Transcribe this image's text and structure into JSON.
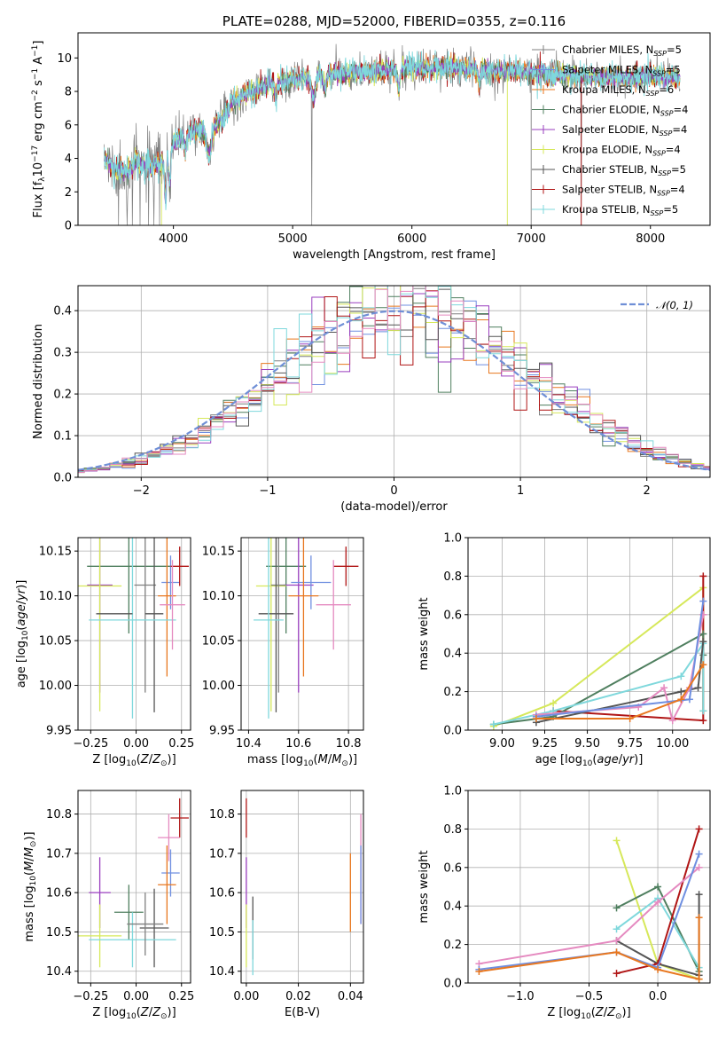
{
  "title": "PLATE=0288, MJD=52000, FIBERID=0355, z=0.116",
  "colors": {
    "chabrier_miles": "#7f7f7f",
    "salpeter_miles": "#6f8fe0",
    "kroupa_miles": "#e8771f",
    "chabrier_elodie": "#4f7f5f",
    "salpeter_elodie": "#9a3fbf",
    "kroupa_elodie": "#d6e85a",
    "chabrier_stelib": "#555555",
    "salpeter_stelib": "#b01515",
    "kroupa_stelib": "#7fd8dc",
    "pink": "#e58ac0",
    "gauss": "#6f8fd6"
  },
  "chart_data": [
    {
      "type": "line",
      "id": "spectrum",
      "title": "PLATE=0288, MJD=52000, FIBERID=0355, z=0.116",
      "xlabel": "wavelength [Angstrom, rest frame]",
      "ylabel": "Flux [fλ10⁻¹⁷ erg cm⁻² s⁻¹ A⁻¹]",
      "xlim": [
        3200,
        8500
      ],
      "ylim": [
        0,
        11.5
      ],
      "xticks": [
        "4000",
        "5000",
        "6000",
        "7000",
        "8000"
      ],
      "yticks": [
        "0",
        "2",
        "4",
        "6",
        "8",
        "10"
      ],
      "legend_position": "top-right",
      "legend": [
        {
          "label": "Chabrier MILES, N",
          "sub": "SSP",
          "suffix": "=5",
          "color_key": "chabrier_miles"
        },
        {
          "label": "Salpeter MILES, N",
          "sub": "SSP",
          "suffix": "=5",
          "color_key": "salpeter_miles"
        },
        {
          "label": "Kroupa MILES, N",
          "sub": "SSP",
          "suffix": "=6",
          "color_key": "kroupa_miles"
        },
        {
          "label": "Chabrier ELODIE, N",
          "sub": "SSP",
          "suffix": "=4",
          "color_key": "chabrier_elodie"
        },
        {
          "label": "Salpeter ELODIE, N",
          "sub": "SSP",
          "suffix": "=4",
          "color_key": "salpeter_elodie"
        },
        {
          "label": "Kroupa ELODIE, N",
          "sub": "SSP",
          "suffix": "=4",
          "color_key": "kroupa_elodie"
        },
        {
          "label": "Chabrier STELIB, N",
          "sub": "SSP",
          "suffix": "=5",
          "color_key": "chabrier_stelib"
        },
        {
          "label": "Salpeter STELIB, N",
          "sub": "SSP",
          "suffix": "=4",
          "color_key": "salpeter_stelib"
        },
        {
          "label": "Kroupa STELIB, N",
          "sub": "SSP",
          "suffix": "=5",
          "color_key": "kroupa_stelib"
        }
      ],
      "continuum_nodes": {
        "x": [
          3420,
          3500,
          3600,
          3700,
          3800,
          3900,
          4000,
          4100,
          4200,
          4300,
          4400,
          4500,
          4600,
          4800,
          5000,
          5200,
          5500,
          5800,
          6000,
          6300,
          6600,
          6800,
          7000,
          7200,
          7500,
          7800,
          8000,
          8250
        ],
        "y": [
          4.0,
          3.3,
          3.2,
          3.8,
          3.5,
          3.7,
          4.9,
          5.5,
          5.8,
          5.5,
          6.3,
          7.4,
          7.8,
          8.4,
          8.7,
          8.9,
          9.1,
          9.3,
          9.4,
          9.4,
          9.3,
          9.2,
          9.1,
          9.0,
          8.9,
          8.8,
          8.9,
          8.8
        ]
      }
    },
    {
      "type": "line",
      "id": "residuals",
      "xlabel": "(data-model)/error",
      "ylabel": "Normed distribution",
      "xlim": [
        -2.5,
        2.5
      ],
      "ylim": [
        0,
        0.46
      ],
      "xticks": [
        "−2",
        "−1",
        "0",
        "1",
        "2"
      ],
      "yticks": [
        "0.0",
        "0.1",
        "0.2",
        "0.3",
        "0.4"
      ],
      "legend": "𝒩(0, 1)",
      "legend_position": "top-right",
      "bin_width": 0.1
    },
    {
      "type": "scatter",
      "id": "age_vs_Z",
      "xlabel": "Z [log₁₀(Z/Z⊙)]",
      "ylabel": "age  [log₁₀(age/yr)]",
      "xlim": [
        -0.32,
        0.3
      ],
      "ylim": [
        9.95,
        10.165
      ],
      "xticks": [
        "−0.25",
        "0.00",
        "0.25"
      ],
      "yticks": [
        "9.95",
        "10.00",
        "10.05",
        "10.10",
        "10.15"
      ],
      "points": [
        {
          "series": "chabrier_elodie",
          "x": -0.04,
          "y": 10.133,
          "xerr": 0.23,
          "yerr": 0.075
        },
        {
          "series": "salpeter_elodie",
          "x": -0.2,
          "y": 10.112,
          "xerr": 0.07,
          "yerr": 0.12
        },
        {
          "series": "kroupa_elodie",
          "x": -0.2,
          "y": 10.111,
          "xerr": 0.12,
          "yerr": 0.14
        },
        {
          "series": "chabrier_miles",
          "x": 0.05,
          "y": 10.112,
          "xerr": 0.06,
          "yerr": 0.12
        },
        {
          "series": "salpeter_miles",
          "x": 0.19,
          "y": 10.115,
          "xerr": 0.05,
          "yerr": 0.03
        },
        {
          "series": "kroupa_miles",
          "x": 0.17,
          "y": 10.1,
          "xerr": 0.05,
          "yerr": 0.09
        },
        {
          "series": "chabrier_stelib",
          "x": 0.1,
          "y": 10.08,
          "xerr": 0.05,
          "yerr": 0.11
        },
        {
          "series": "salpeter_stelib",
          "x": 0.24,
          "y": 10.133,
          "xerr": 0.05,
          "yerr": 0.022
        },
        {
          "series": "kroupa_stelib",
          "x": -0.02,
          "y": 10.073,
          "xerr": 0.24,
          "yerr": 0.11
        },
        {
          "series": "pink",
          "x": 0.2,
          "y": 10.09,
          "xerr": 0.07,
          "yerr": 0.05
        },
        {
          "series": "chabrier_stelib",
          "x": -0.12,
          "y": 10.08,
          "xerr": 0.1,
          "yerr": 0.0
        }
      ]
    },
    {
      "type": "scatter",
      "id": "age_vs_mass",
      "xlabel": "mass [log₁₀(M/M⊙)]",
      "xlim": [
        10.37,
        10.86
      ],
      "ylim": [
        9.95,
        10.165
      ],
      "xticks": [
        "10.4",
        "10.6",
        "10.8"
      ],
      "yticks": [
        "9.95",
        "10.00",
        "10.05",
        "10.10",
        "10.15"
      ],
      "points": [
        {
          "series": "chabrier_elodie",
          "x": 10.55,
          "y": 10.133,
          "xerr": 0.08,
          "yerr": 0.075
        },
        {
          "series": "salpeter_elodie",
          "x": 10.6,
          "y": 10.112,
          "xerr": 0.06,
          "yerr": 0.12
        },
        {
          "series": "kroupa_elodie",
          "x": 10.49,
          "y": 10.111,
          "xerr": 0.06,
          "yerr": 0.14
        },
        {
          "series": "chabrier_miles",
          "x": 10.52,
          "y": 10.112,
          "xerr": 0.03,
          "yerr": 0.12
        },
        {
          "series": "salpeter_miles",
          "x": 10.65,
          "y": 10.115,
          "xerr": 0.08,
          "yerr": 0.03
        },
        {
          "series": "kroupa_miles",
          "x": 10.62,
          "y": 10.1,
          "xerr": 0.06,
          "yerr": 0.09
        },
        {
          "series": "chabrier_stelib",
          "x": 10.51,
          "y": 10.08,
          "xerr": 0.07,
          "yerr": 0.11
        },
        {
          "series": "salpeter_stelib",
          "x": 10.79,
          "y": 10.133,
          "xerr": 0.05,
          "yerr": 0.022
        },
        {
          "series": "kroupa_stelib",
          "x": 10.48,
          "y": 10.073,
          "xerr": 0.06,
          "yerr": 0.11
        },
        {
          "series": "pink",
          "x": 10.74,
          "y": 10.09,
          "xerr": 0.07,
          "yerr": 0.05
        },
        {
          "series": "salpeter_elodie",
          "x": 10.6,
          "y": 10.112,
          "xerr": 0.0,
          "yerr": 0.0
        }
      ]
    },
    {
      "type": "line",
      "id": "mass_weight_vs_age",
      "xlabel": "age  [log₁₀(age/yr)]",
      "ylabel": "mass weight",
      "xlim": [
        8.8,
        10.22
      ],
      "ylim": [
        0,
        1.0
      ],
      "xticks": [
        "9.00",
        "9.25",
        "9.50",
        "9.75",
        "10.00"
      ],
      "yticks": [
        "0.0",
        "0.2",
        "0.4",
        "0.6",
        "0.8",
        "1.0"
      ],
      "series": [
        {
          "name": "",
          "color_key": "kroupa_elodie",
          "x": [
            8.95,
            9.3,
            10.18,
            10.18
          ],
          "y": [
            0.02,
            0.14,
            0.74,
            0.1
          ]
        },
        {
          "name": "",
          "color_key": "salpeter_stelib",
          "x": [
            9.3,
            10.18,
            10.18
          ],
          "y": [
            0.1,
            0.05,
            0.8
          ]
        },
        {
          "name": "",
          "color_key": "chabrier_elodie",
          "x": [
            8.95,
            9.3,
            10.18,
            10.18
          ],
          "y": [
            0.03,
            0.07,
            0.5,
            0.39
          ]
        },
        {
          "name": "",
          "color_key": "kroupa_stelib",
          "x": [
            8.95,
            9.3,
            10.05,
            10.18,
            10.18
          ],
          "y": [
            0.03,
            0.1,
            0.28,
            0.45,
            0.1
          ]
        },
        {
          "name": "",
          "color_key": "chabrier_stelib",
          "x": [
            9.2,
            10.05,
            10.15,
            10.18
          ],
          "y": [
            0.04,
            0.2,
            0.22,
            0.46
          ]
        },
        {
          "name": "",
          "color_key": "pink",
          "x": [
            9.2,
            9.8,
            9.95,
            10.0,
            10.1,
            10.18
          ],
          "y": [
            0.08,
            0.12,
            0.22,
            0.05,
            0.22,
            0.6
          ]
        },
        {
          "name": "",
          "color_key": "salpeter_miles",
          "x": [
            9.2,
            10.1,
            10.18
          ],
          "y": [
            0.07,
            0.16,
            0.67
          ]
        },
        {
          "name": "",
          "color_key": "kroupa_miles",
          "x": [
            9.2,
            9.75,
            10.05,
            10.18
          ],
          "y": [
            0.06,
            0.06,
            0.16,
            0.34
          ]
        }
      ]
    },
    {
      "type": "scatter",
      "id": "mass_vs_Z",
      "xlabel": "Z [log₁₀(Z/Z⊙)]",
      "ylabel": "mass [log₁₀(M/M⊙)]",
      "xlim": [
        -0.32,
        0.3
      ],
      "ylim": [
        10.37,
        10.86
      ],
      "xticks": [
        "−0.25",
        "0.00",
        "0.25"
      ],
      "yticks": [
        "10.4",
        "10.5",
        "10.6",
        "10.7",
        "10.8"
      ],
      "points": [
        {
          "series": "salpeter_stelib",
          "x": 0.24,
          "y": 10.79,
          "xerr": 0.05,
          "yerr": 0.05
        },
        {
          "series": "pink",
          "x": 0.18,
          "y": 10.74,
          "xerr": 0.06,
          "yerr": 0.06
        },
        {
          "series": "salpeter_miles",
          "x": 0.19,
          "y": 10.65,
          "xerr": 0.05,
          "yerr": 0.06
        },
        {
          "series": "kroupa_miles",
          "x": 0.17,
          "y": 10.62,
          "xerr": 0.05,
          "yerr": 0.1
        },
        {
          "series": "salpeter_elodie",
          "x": -0.2,
          "y": 10.6,
          "xerr": 0.06,
          "yerr": 0.09
        },
        {
          "series": "chabrier_elodie",
          "x": -0.04,
          "y": 10.55,
          "xerr": 0.08,
          "yerr": 0.07
        },
        {
          "series": "chabrier_stelib",
          "x": 0.1,
          "y": 10.51,
          "xerr": 0.08,
          "yerr": 0.1
        },
        {
          "series": "kroupa_elodie",
          "x": -0.2,
          "y": 10.49,
          "xerr": 0.12,
          "yerr": 0.08
        },
        {
          "series": "kroupa_stelib",
          "x": -0.02,
          "y": 10.48,
          "xerr": 0.24,
          "yerr": 0.07
        },
        {
          "series": "chabrier_miles",
          "x": 0.05,
          "y": 10.52,
          "xerr": 0.1,
          "yerr": 0.08
        }
      ]
    },
    {
      "type": "scatter",
      "id": "mass_vs_ebv",
      "xlabel": "E(B-V)",
      "xlim": [
        -0.002,
        0.045
      ],
      "ylim": [
        10.37,
        10.86
      ],
      "xticks": [
        "0.00",
        "0.02",
        "0.04"
      ],
      "yticks": [
        "10.4",
        "10.5",
        "10.6",
        "10.7",
        "10.8"
      ],
      "points": [
        {
          "series": "salpeter_stelib",
          "x": 0.0,
          "y": 10.79,
          "yerr": 0.05
        },
        {
          "series": "salpeter_elodie",
          "x": 0.0,
          "y": 10.6,
          "yerr": 0.09
        },
        {
          "series": "kroupa_elodie",
          "x": 0.0,
          "y": 10.49,
          "yerr": 0.08
        },
        {
          "series": "chabrier_stelib",
          "x": 0.0025,
          "y": 10.51,
          "yerr": 0.08
        },
        {
          "series": "kroupa_stelib",
          "x": 0.0025,
          "y": 10.46,
          "yerr": 0.07
        },
        {
          "series": "kroupa_miles",
          "x": 0.04,
          "y": 10.6,
          "yerr": 0.1
        },
        {
          "series": "pink",
          "x": 0.044,
          "y": 10.66,
          "yerr": 0.14
        },
        {
          "series": "salpeter_miles",
          "x": 0.044,
          "y": 10.62,
          "yerr": 0.1
        }
      ]
    },
    {
      "type": "line",
      "id": "mass_weight_vs_Z",
      "xlabel": "Z [log₁₀(Z/Z⊙)]",
      "ylabel": "mass weight",
      "xlim": [
        -1.38,
        0.38
      ],
      "ylim": [
        0,
        1.0
      ],
      "xticks": [
        "−1.0",
        "−0.5",
        "0.0"
      ],
      "yticks": [
        "0.0",
        "0.2",
        "0.4",
        "0.6",
        "0.8",
        "1.0"
      ],
      "series": [
        {
          "name": "",
          "color_key": "kroupa_elodie",
          "x": [
            -0.3,
            0.0,
            0.3
          ],
          "y": [
            0.74,
            0.1,
            0.02
          ]
        },
        {
          "name": "",
          "color_key": "chabrier_elodie",
          "x": [
            -0.3,
            0.0,
            0.3
          ],
          "y": [
            0.39,
            0.5,
            0.06
          ]
        },
        {
          "name": "",
          "color_key": "kroupa_stelib",
          "x": [
            -0.3,
            0.0,
            0.3
          ],
          "y": [
            0.28,
            0.44,
            0.08
          ]
        },
        {
          "name": "",
          "color_key": "chabrier_stelib",
          "x": [
            -0.3,
            0.0,
            0.3,
            0.3
          ],
          "y": [
            0.22,
            0.1,
            0.04,
            0.46
          ]
        },
        {
          "name": "",
          "color_key": "salpeter_stelib",
          "x": [
            -0.3,
            0.0,
            0.3
          ],
          "y": [
            0.05,
            0.1,
            0.8
          ]
        },
        {
          "name": "",
          "color_key": "pink",
          "x": [
            -1.3,
            -0.3,
            0.0,
            0.3
          ],
          "y": [
            0.1,
            0.22,
            0.42,
            0.6
          ]
        },
        {
          "name": "",
          "color_key": "salpeter_miles",
          "x": [
            -1.3,
            -0.3,
            0.0,
            0.3
          ],
          "y": [
            0.07,
            0.16,
            0.08,
            0.67
          ]
        },
        {
          "name": "",
          "color_key": "kroupa_miles",
          "x": [
            -1.3,
            -0.3,
            0.0,
            0.3,
            0.3
          ],
          "y": [
            0.06,
            0.16,
            0.07,
            0.02,
            0.34
          ]
        }
      ]
    }
  ]
}
